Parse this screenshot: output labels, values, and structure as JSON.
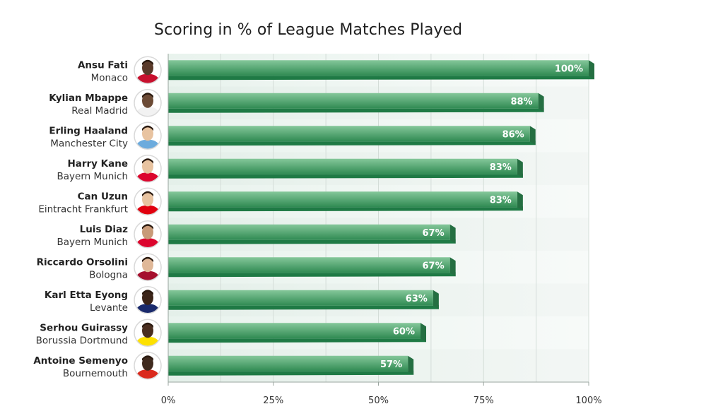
{
  "chart_data": {
    "type": "bar",
    "orientation": "horizontal",
    "title": "Scoring in % of League Matches Played",
    "xlim": [
      0,
      100
    ],
    "xticks": [
      "0%",
      "25%",
      "50%",
      "75%",
      "100%"
    ],
    "grid": true,
    "players": [
      {
        "name": "Ansu Fati",
        "club": "Monaco",
        "value": 100,
        "label": "100%"
      },
      {
        "name": "Kylian Mbappe",
        "club": "Real Madrid",
        "value": 88,
        "label": "88%"
      },
      {
        "name": "Erling Haaland",
        "club": "Manchester City",
        "value": 86,
        "label": "86%"
      },
      {
        "name": "Harry Kane",
        "club": "Bayern Munich",
        "value": 83,
        "label": "83%"
      },
      {
        "name": "Can Uzun",
        "club": "Eintracht Frankfurt",
        "value": 83,
        "label": "83%"
      },
      {
        "name": "Luis Diaz",
        "club": "Bayern Munich",
        "value": 67,
        "label": "67%"
      },
      {
        "name": "Riccardo Orsolini",
        "club": "Bologna",
        "value": 67,
        "label": "67%"
      },
      {
        "name": "Karl Etta Eyong",
        "club": "Levante",
        "value": 63,
        "label": "63%"
      },
      {
        "name": "Serhou Guirassy",
        "club": "Borussia Dortmund",
        "value": 60,
        "label": "60%"
      },
      {
        "name": "Antoine Semenyo",
        "club": "Bournemouth",
        "value": 57,
        "label": "57%"
      }
    ],
    "colors": {
      "bar_top": "#85c79a",
      "bar_bottom": "#2f8a52",
      "bar_shadow": "#1f7a45",
      "band_light": "#eef4f1",
      "band_alt": "#e4ece8",
      "grid": "#d4ddd8"
    },
    "avatar_kits": [
      "#c8102e",
      "#f2f2f2",
      "#6cabdd",
      "#dc052d",
      "#e1000f",
      "#dc052d",
      "#a50f2d",
      "#1a2a6c",
      "#fde100",
      "#da291c"
    ],
    "avatar_skin": [
      "#5a3a2a",
      "#6b4a35",
      "#e8c3a0",
      "#e8c3a0",
      "#e8c3a0",
      "#c89a78",
      "#e0b898",
      "#3b2418",
      "#4a2e20",
      "#3f2a1e"
    ]
  }
}
